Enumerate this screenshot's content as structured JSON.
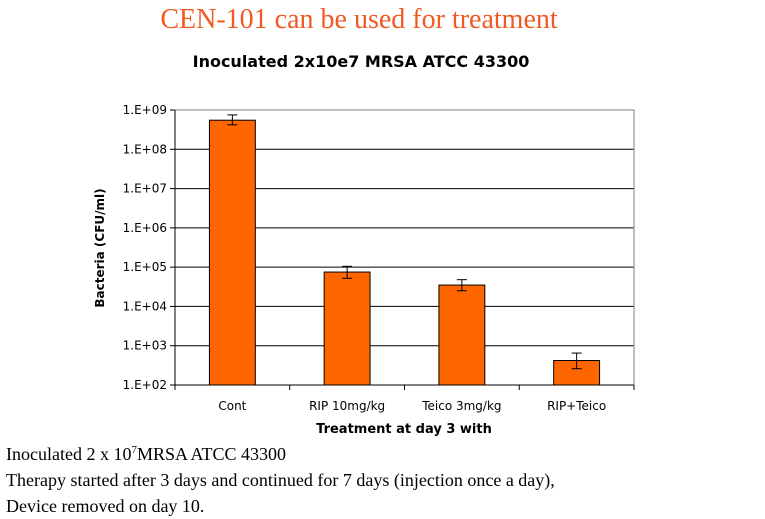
{
  "slide_title": "CEN-101 can be used for treatment",
  "chart_data": {
    "type": "bar",
    "title": "Inoculated 2x10e7 MRSA ATCC 43300",
    "xlabel": "Treatment at day 3 with",
    "ylabel": "Bacteria (CFU/ml)",
    "yscale": "log",
    "ylim": [
      100,
      1000000000
    ],
    "yticks": [
      100,
      1000,
      10000,
      100000,
      1000000,
      10000000,
      100000000,
      1000000000
    ],
    "ytick_labels": [
      "1.E+02",
      "1.E+03",
      "1.E+04",
      "1.E+05",
      "1.E+06",
      "1.E+07",
      "1.E+08",
      "1.E+09"
    ],
    "categories": [
      "Cont",
      "RIP 10mg/kg",
      "Teico 3mg/kg",
      "RIP+Teico"
    ],
    "values": [
      550000000,
      75000,
      35000,
      420
    ],
    "error_low": [
      420000000,
      52000,
      25000,
      260
    ],
    "error_high": [
      750000000,
      105000,
      48000,
      650
    ],
    "grid": true,
    "colors": {
      "bar": "#ff6600",
      "bar_edge": "#000000",
      "grid": "#000000"
    }
  },
  "notes": {
    "line1_prefix": "Inoculated  2 x  10",
    "line1_sup": "7",
    "line1_suffix": "MRSA ATCC  43300",
    "line2": "Therapy  started after 3 days and continued for 7 days (injection once a day),",
    "line3": "Device removed on day 10."
  },
  "colors": {
    "slide_title": "#f05a22"
  }
}
